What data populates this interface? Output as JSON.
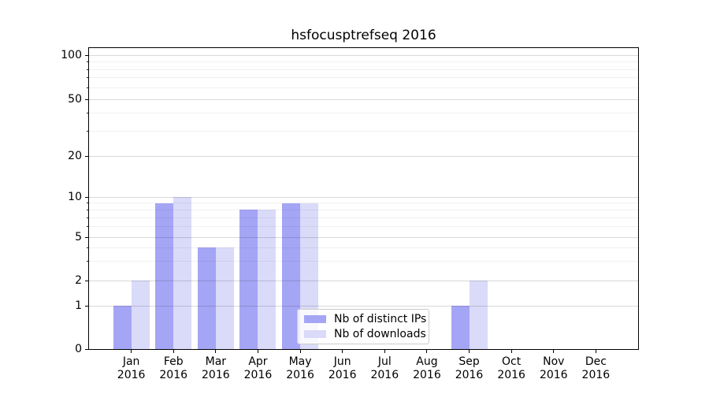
{
  "chart_data": {
    "type": "bar",
    "title": "hsfocusptrefseq 2016",
    "x_labels": {
      "months": [
        "Jan",
        "Feb",
        "Mar",
        "Apr",
        "May",
        "Jun",
        "Jul",
        "Aug",
        "Sep",
        "Oct",
        "Nov",
        "Dec"
      ],
      "year": "2016"
    },
    "series": [
      {
        "name": "Nb of distinct IPs",
        "color": "#a5a5f6",
        "values": [
          1,
          9,
          4,
          8,
          9,
          0,
          0,
          0,
          1,
          0,
          0,
          0
        ]
      },
      {
        "name": "Nb of downloads",
        "color": "#dadaf9",
        "values": [
          2,
          10,
          4,
          8,
          9,
          0,
          0,
          0,
          2,
          0,
          0,
          0
        ]
      }
    ],
    "yticks": [
      0,
      1,
      2,
      5,
      10,
      20,
      50,
      100
    ],
    "yscale": "log-like",
    "ylim": [
      0,
      130
    ],
    "grid": true,
    "legend_position": "lower center inside"
  }
}
